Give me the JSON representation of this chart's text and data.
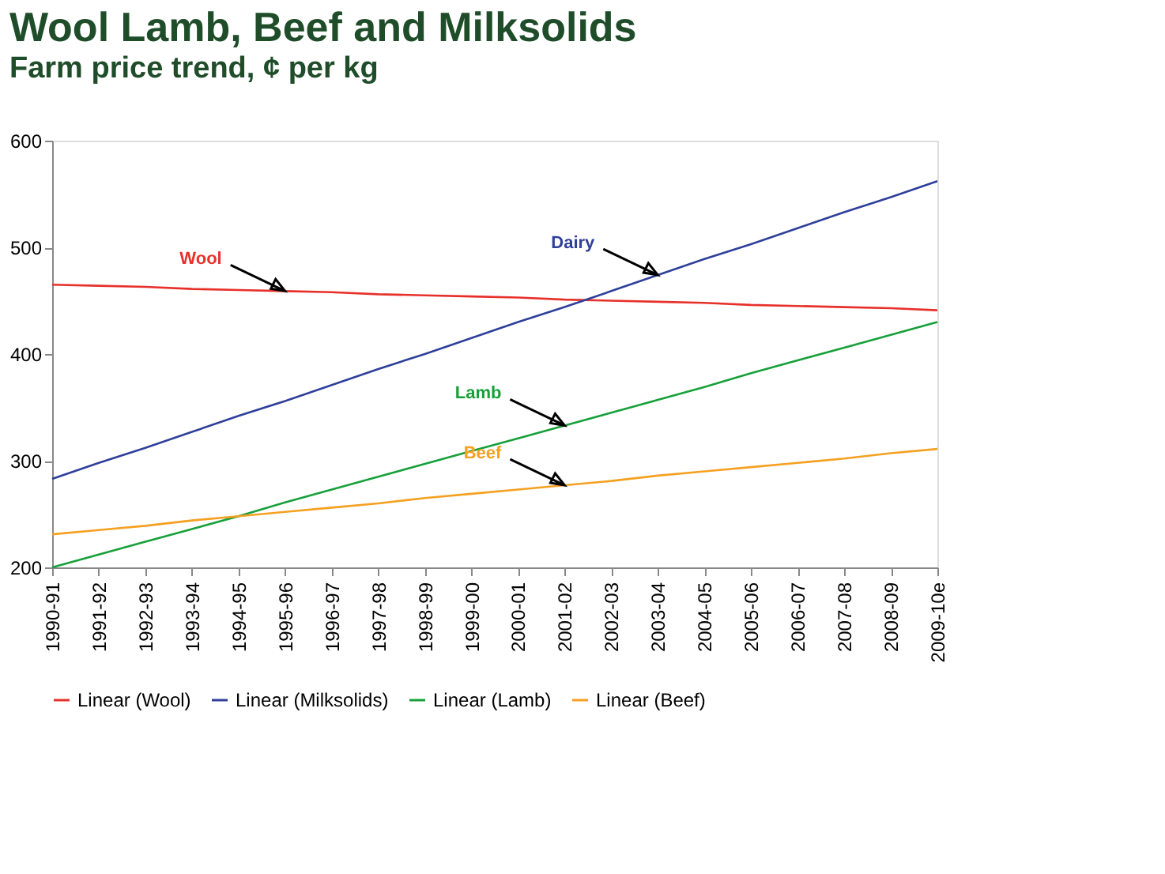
{
  "chart_data": {
    "type": "line",
    "title": "Wool Lamb, Beef and Milksolids",
    "subtitle": "Farm price trend, ¢ per kg",
    "categories": [
      "1990-91",
      "1991-92",
      "1992-93",
      "1993-94",
      "1994-95",
      "1995-96",
      "1996-97",
      "1997-98",
      "1998-99",
      "1999-00",
      "2000-01",
      "2001-02",
      "2002-03",
      "2003-04",
      "2004-05",
      "2005-06",
      "2006-07",
      "2007-08",
      "2008-09",
      "2009-10e"
    ],
    "series": [
      {
        "name": "Linear (Wool)",
        "color": "#e8302a",
        "values": [
          465,
          464,
          463,
          461,
          460,
          459,
          458,
          456,
          455,
          454,
          453,
          451,
          450,
          449,
          448,
          446,
          445,
          444,
          443,
          441
        ]
      },
      {
        "name": "Linear (Milksolids)",
        "color": "#2f3f9a",
        "values": [
          283,
          298,
          312,
          327,
          342,
          356,
          371,
          386,
          400,
          415,
          430,
          444,
          459,
          474,
          489,
          503,
          518,
          533,
          547,
          562
        ]
      },
      {
        "name": "Linear (Lamb)",
        "color": "#17a03a",
        "values": [
          200,
          212,
          224,
          236,
          248,
          261,
          273,
          285,
          297,
          309,
          321,
          333,
          345,
          357,
          369,
          382,
          394,
          406,
          418,
          430
        ]
      },
      {
        "name": "Linear (Beef)",
        "color": "#f5a020",
        "values": [
          231,
          235,
          239,
          244,
          248,
          252,
          256,
          260,
          265,
          269,
          273,
          277,
          281,
          286,
          290,
          294,
          298,
          302,
          307,
          311
        ]
      }
    ],
    "ylim": [
      200,
      600
    ],
    "yticks": [
      200,
      300,
      400,
      500,
      600
    ],
    "grid": false,
    "legend": "bottom",
    "marker": "none",
    "line_style": "solid",
    "annotations": [
      {
        "text": "Dairy",
        "x": "2003-04",
        "y": 474
      },
      {
        "text": "Wool",
        "x": "1995-96",
        "y": 459
      },
      {
        "text": "Lamb",
        "x": "2001-02",
        "y": 333
      },
      {
        "text": "Beef",
        "x": "2001-02",
        "y": 277
      }
    ]
  }
}
